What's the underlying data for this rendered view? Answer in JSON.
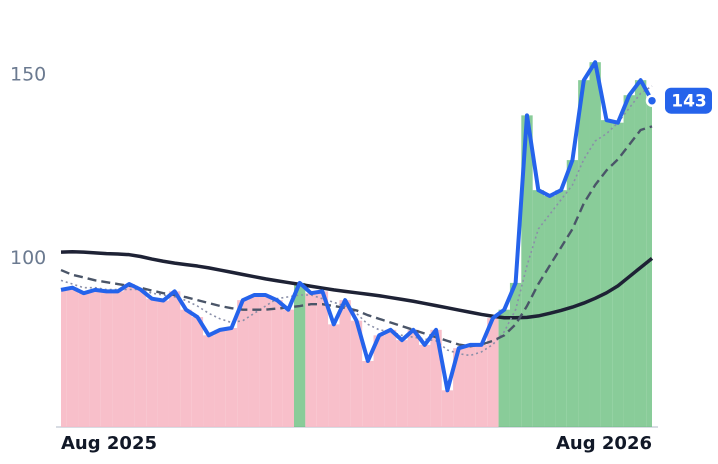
{
  "chart_data": {
    "type": "line",
    "categories": [
      "Aug 2025",
      null,
      null,
      null,
      null,
      null,
      null,
      null,
      null,
      null,
      null,
      null,
      null,
      null,
      null,
      null,
      null,
      null,
      null,
      null,
      null,
      null,
      null,
      null,
      null,
      null,
      null,
      null,
      null,
      null,
      null,
      null,
      null,
      null,
      null,
      null,
      null,
      null,
      null,
      null,
      null,
      null,
      null,
      null,
      null,
      null,
      null,
      null,
      null,
      null,
      null,
      null,
      "Aug 2026"
    ],
    "series": [
      {
        "color": "#2563eb",
        "dash": "solid",
        "values": [
          91.4,
          92,
          90.5,
          91.4,
          91,
          91,
          93,
          91.5,
          89,
          88.5,
          91,
          86,
          84,
          79,
          80.5,
          81,
          88.6,
          90,
          90,
          88.6,
          86,
          93.3,
          90.5,
          91,
          82,
          88.6,
          83,
          72,
          79,
          80.5,
          77.7,
          80.5,
          76.4,
          80.5,
          64,
          75.5,
          76.4,
          76.4,
          83.7,
          86,
          93.3,
          139,
          118.6,
          117,
          118.6,
          126.8,
          148.6,
          153.5,
          137.7,
          137,
          144.5,
          148.6,
          143
        ]
      },
      {
        "color": "#8a8fa8",
        "dash": "dotted",
        "values": [
          94,
          93,
          92,
          92,
          91.5,
          91.5,
          91.5,
          91.5,
          90.5,
          90,
          89.5,
          88.5,
          87,
          85,
          83.5,
          82.5,
          83,
          85,
          87,
          89,
          89.5,
          90,
          90,
          89,
          88,
          87,
          85,
          82,
          80.5,
          80,
          79,
          78.5,
          78,
          77.5,
          75,
          74,
          73.5,
          74.5,
          76.5,
          80,
          86,
          98,
          108,
          112,
          116,
          120,
          127,
          132,
          134,
          137,
          141,
          145,
          147
        ]
      },
      {
        "color": "#4a5568",
        "dash": "dashed",
        "values": [
          96.8,
          95.5,
          94.8,
          94,
          93.5,
          93,
          92.5,
          92,
          91.2,
          90.5,
          90,
          89.4,
          88.6,
          87.8,
          87,
          86.4,
          86,
          86,
          86,
          86.3,
          86.6,
          87,
          87.5,
          87.5,
          87,
          86.5,
          85.8,
          84.5,
          83.5,
          82.5,
          81.5,
          80.5,
          79.5,
          78.5,
          77.5,
          76.5,
          76,
          76.5,
          77.5,
          79,
          82,
          87,
          93,
          98,
          103,
          108,
          115,
          120,
          124,
          127,
          131,
          135,
          136
        ]
      },
      {
        "color": "#1e2235",
        "dash": "solid",
        "values": [
          101.7,
          101.8,
          101.7,
          101.5,
          101.3,
          101.2,
          101,
          100.5,
          99.8,
          99.2,
          98.7,
          98.3,
          97.9,
          97.4,
          96.8,
          96.2,
          95.6,
          95,
          94.4,
          93.9,
          93.4,
          92.9,
          92.4,
          91.9,
          91.4,
          91,
          90.6,
          90.2,
          89.8,
          89.3,
          88.8,
          88.3,
          87.7,
          87.1,
          86.5,
          85.9,
          85.3,
          84.7,
          84.2,
          83.8,
          83.8,
          83.9,
          84.3,
          85,
          85.8,
          86.7,
          87.8,
          89.1,
          90.6,
          92.5,
          95,
          97.5,
          100
        ]
      }
    ],
    "up_color": "#6cbf7f",
    "down_color": "#f7b8c4",
    "ylim": [
      54,
      170
    ],
    "yticks": [
      100,
      150
    ],
    "grid": false
  }
}
